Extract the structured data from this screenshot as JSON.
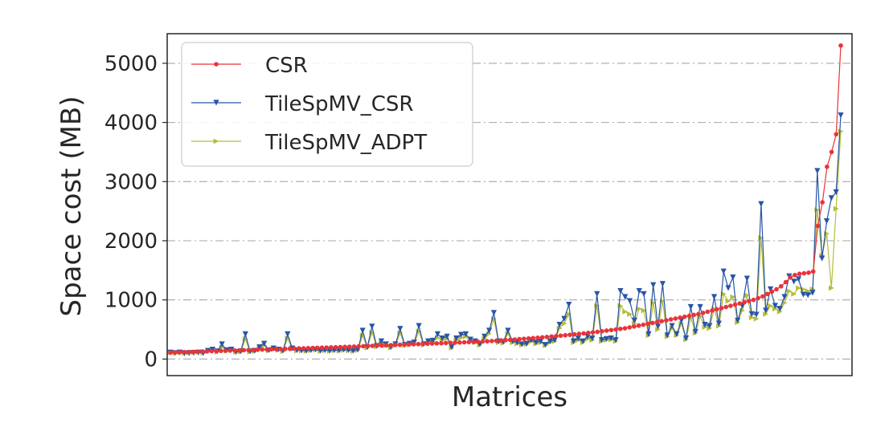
{
  "chart_data": {
    "type": "line",
    "xlabel": "Matrices",
    "ylabel": "Space cost (MB)",
    "ylim": [
      -280,
      5500
    ],
    "yticks": [
      0,
      1000,
      2000,
      3000,
      4000,
      5000
    ],
    "xticks_shown": false,
    "grid": "horizontal dash-dot",
    "legend_position": "top-left",
    "series": [
      {
        "name": "CSR",
        "color": "#e8343a",
        "marker": "circle",
        "values": [
          110,
          112,
          115,
          118,
          120,
          122,
          125,
          128,
          130,
          133,
          136,
          138,
          140,
          143,
          145,
          147,
          150,
          152,
          155,
          158,
          160,
          162,
          165,
          168,
          170,
          172,
          175,
          178,
          180,
          182,
          185,
          187,
          190,
          192,
          195,
          198,
          200,
          203,
          206,
          208,
          211,
          214,
          217,
          220,
          223,
          226,
          229,
          232,
          235,
          238,
          241,
          244,
          247,
          250,
          253,
          256,
          259,
          262,
          265,
          268,
          271,
          274,
          277,
          280,
          283,
          286,
          289,
          292,
          296,
          300,
          305,
          310,
          315,
          320,
          325,
          330,
          336,
          342,
          348,
          354,
          360,
          367,
          374,
          381,
          388,
          395,
          402,
          410,
          418,
          426,
          434,
          442,
          451,
          460,
          470,
          480,
          490,
          500,
          510,
          520,
          535,
          550,
          565,
          580,
          595,
          610,
          625,
          640,
          655,
          670,
          685,
          700,
          715,
          730,
          745,
          760,
          780,
          800,
          820,
          840,
          860,
          880,
          900,
          920,
          940,
          960,
          980,
          1000,
          1030,
          1060,
          1100,
          1140,
          1180,
          1230,
          1300,
          1380,
          1420,
          1440,
          1450,
          1460,
          1480,
          2250,
          2650,
          3250,
          3500,
          3800,
          5300
        ]
      },
      {
        "name": "TileSpMV_CSR",
        "color": "#2855a6",
        "marker": "triangle-down",
        "values": [
          110,
          100,
          110,
          95,
          100,
          105,
          110,
          100,
          140,
          160,
          130,
          250,
          150,
          160,
          120,
          130,
          420,
          130,
          140,
          200,
          260,
          150,
          180,
          160,
          140,
          420,
          180,
          150,
          145,
          140,
          150,
          160,
          140,
          150,
          140,
          150,
          145,
          160,
          150,
          140,
          160,
          480,
          200,
          550,
          220,
          300,
          250,
          200,
          250,
          510,
          240,
          260,
          280,
          560,
          250,
          300,
          310,
          420,
          350,
          380,
          200,
          350,
          410,
          420,
          330,
          300,
          250,
          380,
          480,
          780,
          300,
          290,
          480,
          300,
          280,
          250,
          260,
          320,
          280,
          300,
          240,
          300,
          320,
          580,
          680,
          920,
          300,
          350,
          300,
          380,
          350,
          1100,
          320,
          340,
          350,
          320,
          1150,
          1050,
          980,
          650,
          1150,
          1100,
          420,
          1250,
          550,
          1270,
          400,
          560,
          420,
          650,
          350,
          880,
          460,
          880,
          580,
          560,
          1050,
          600,
          1480,
          1200,
          1380,
          650,
          900,
          1360,
          760,
          750,
          2620,
          820,
          1180,
          900,
          850,
          1050,
          1400,
          1310,
          1350,
          1090,
          1080,
          1120,
          3180,
          1700,
          2330,
          2720,
          2820,
          4120
        ]
      },
      {
        "name": "TileSpMV_ADPT",
        "color": "#b5bd3a",
        "marker": "triangle-right",
        "values": [
          110,
          105,
          110,
          100,
          105,
          110,
          115,
          105,
          130,
          150,
          120,
          200,
          140,
          150,
          115,
          120,
          340,
          120,
          130,
          180,
          230,
          140,
          170,
          150,
          130,
          350,
          170,
          140,
          140,
          135,
          145,
          155,
          135,
          145,
          135,
          145,
          140,
          150,
          145,
          135,
          150,
          400,
          190,
          450,
          210,
          270,
          230,
          190,
          230,
          440,
          230,
          240,
          260,
          470,
          240,
          280,
          290,
          360,
          320,
          350,
          190,
          320,
          360,
          380,
          300,
          280,
          240,
          340,
          430,
          680,
          280,
          270,
          430,
          280,
          260,
          240,
          250,
          300,
          260,
          280,
          230,
          280,
          300,
          520,
          600,
          760,
          280,
          320,
          280,
          340,
          320,
          900,
          300,
          320,
          330,
          300,
          900,
          800,
          760,
          600,
          850,
          820,
          400,
          950,
          500,
          980,
          380,
          520,
          400,
          600,
          330,
          700,
          440,
          720,
          540,
          520,
          850,
          560,
          1100,
          980,
          1050,
          620,
          820,
          1080,
          700,
          680,
          2050,
          760,
          900,
          850,
          800,
          950,
          1150,
          1100,
          1200,
          1180,
          1150,
          1180,
          2520,
          1750,
          2120,
          1200,
          2540,
          3850
        ]
      }
    ]
  }
}
